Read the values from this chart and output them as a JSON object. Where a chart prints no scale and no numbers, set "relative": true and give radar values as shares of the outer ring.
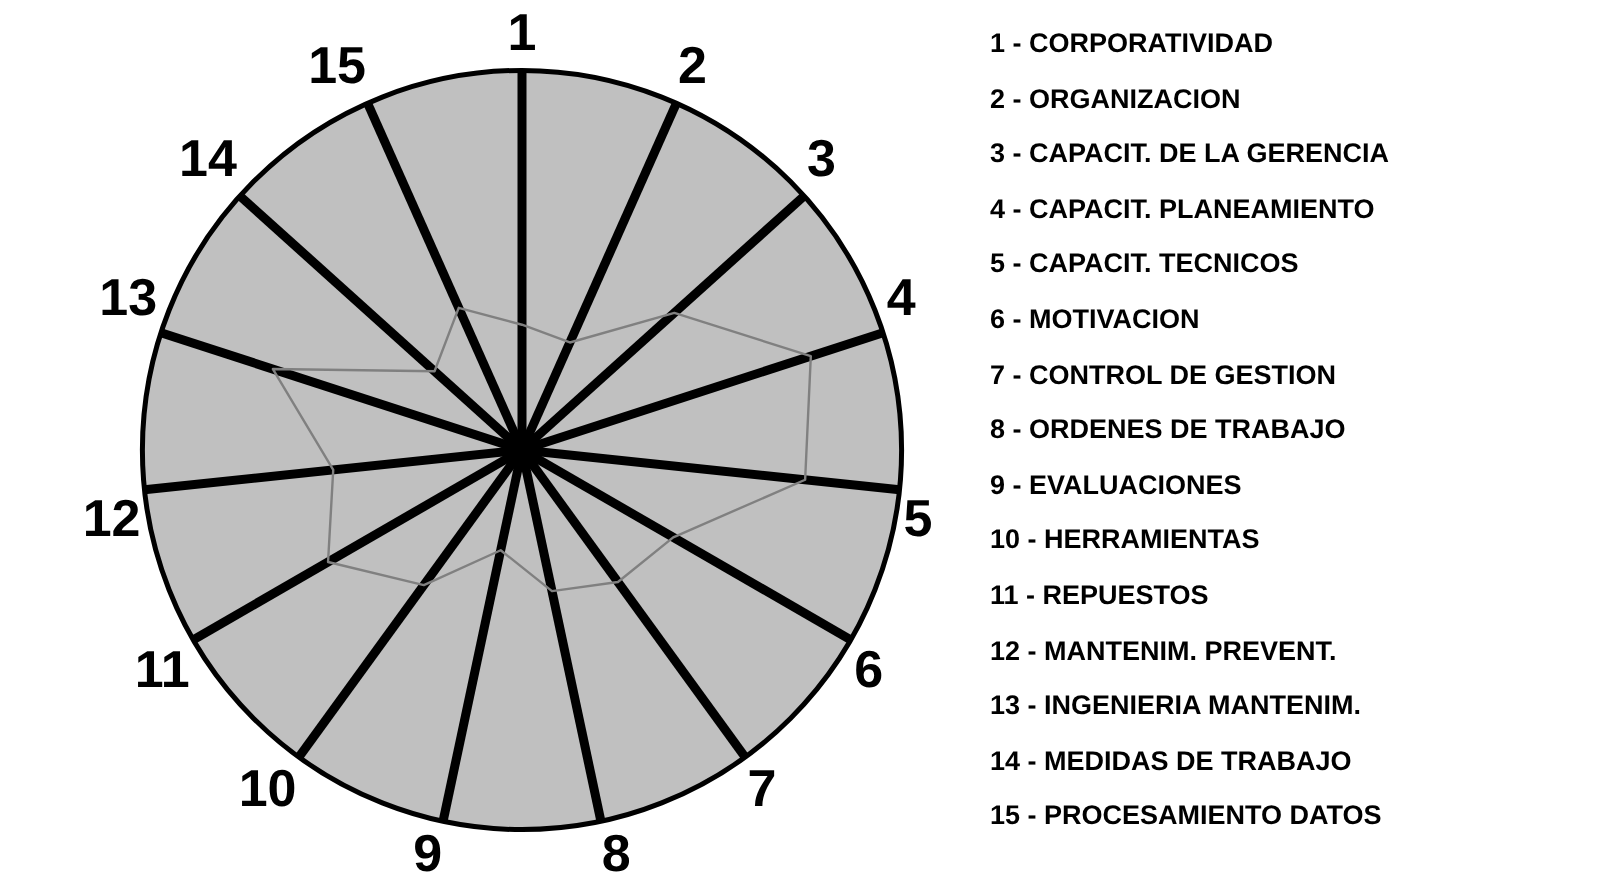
{
  "chart_data": {
    "type": "radar",
    "relative": true,
    "categories": [
      "1",
      "2",
      "3",
      "4",
      "5",
      "6",
      "7",
      "8",
      "9",
      "10",
      "11",
      "12",
      "13",
      "14",
      "15"
    ],
    "series": [
      {
        "color": "#808080",
        "values": [
          0.33,
          0.31,
          0.54,
          0.8,
          0.75,
          0.46,
          0.43,
          0.38,
          0.27,
          0.44,
          0.59,
          0.5,
          0.69,
          0.31,
          0.41
        ]
      }
    ],
    "marker": "none",
    "legend": false,
    "annotations": [
      "1 - CORPORATIVIDAD",
      "2 - ORGANIZACION",
      "3 - CAPACIT. DE LA GERENCIA",
      "4 - CAPACIT. PLANEAMIENTO",
      "5 - CAPACIT. TECNICOS",
      "6 - MOTIVACION",
      "7 - CONTROL DE GESTION",
      "8 - ORDENES DE TRABAJO",
      "9 - EVALUACIONES",
      "10 - HERRAMIENTAS",
      "11 - REPUESTOS",
      "12 - MANTENIM. PREVENT.",
      "13 - INGENIERIA MANTENIM.",
      "14 - MEDIDAS DE TRABAJO",
      "15 - PROCESAMIENTO DATOS"
    ]
  }
}
